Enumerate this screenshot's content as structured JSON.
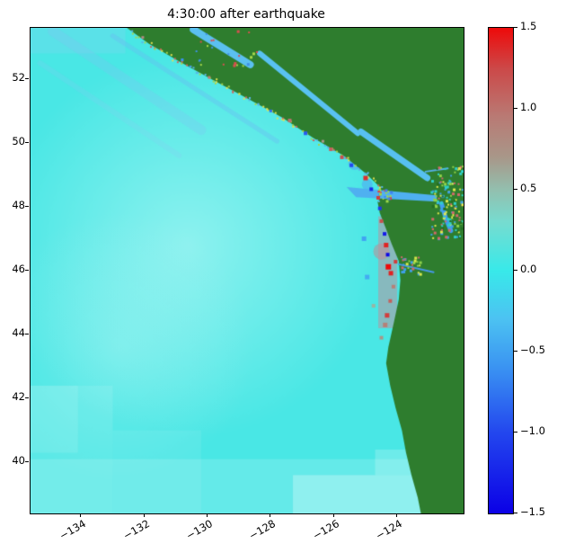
{
  "chart_data": {
    "type": "heatmap",
    "title": "4:30:00 after earthquake",
    "description": "Snapshot of simulated tsunami sea-surface elevation off the Cascadia (BC/Washington/Oregon) coast 4:30:00 after the earthquake. Ocean is near 0 (cyan), land is masked dark green, and strong positive/negative oscillations (up to ±1.5) hug the outer coast.",
    "grid": false,
    "x_axis": {
      "lim": [
        -135.6,
        -121.9
      ],
      "ticks": [
        -134,
        -132,
        -130,
        -128,
        -126,
        -124
      ],
      "tick_labels": [
        "−134",
        "−132",
        "−130",
        "−128",
        "−126",
        "−124"
      ],
      "tick_rotation_deg": -30
    },
    "y_axis": {
      "lim": [
        38.4,
        53.6
      ],
      "ticks": [
        40,
        42,
        44,
        46,
        48,
        50,
        52
      ],
      "tick_labels": [
        "40",
        "42",
        "44",
        "46",
        "48",
        "50",
        "52"
      ]
    },
    "colorbar": {
      "lim": [
        -1.5,
        1.5
      ],
      "ticks": [
        1.5,
        1.0,
        0.5,
        0.0,
        -0.5,
        -1.0,
        -1.5
      ],
      "tick_labels": [
        "1.5",
        "1.0",
        "0.5",
        "0.0",
        "−0.5",
        "−1.0",
        "−1.5"
      ],
      "stops": [
        {
          "v": 1.5,
          "c": "#ee0a0a"
        },
        {
          "v": 1.25,
          "c": "#cc4848"
        },
        {
          "v": 0.95,
          "c": "#b97a74"
        },
        {
          "v": 0.7,
          "c": "#a89789"
        },
        {
          "v": 0.5,
          "c": "#93bfae"
        },
        {
          "v": 0.3,
          "c": "#76dcd0"
        },
        {
          "v": 0.0,
          "c": "#38e9e9"
        },
        {
          "v": -0.3,
          "c": "#4cc2f2"
        },
        {
          "v": -0.6,
          "c": "#3a93f2"
        },
        {
          "v": -1.0,
          "c": "#2347ee"
        },
        {
          "v": -1.5,
          "c": "#0b00e6"
        }
      ]
    },
    "map": {
      "ocean": {
        "base": "#49e7e5",
        "overlays": [
          {
            "type": "radial",
            "lon": -130.6,
            "lat": 46.8,
            "r": 215,
            "rgba": [
              225,
              255,
              252,
              0.45
            ]
          },
          {
            "type": "radial",
            "lon": -132.8,
            "lat": 43.6,
            "r": 150,
            "rgba": [
              220,
              252,
              250,
              0.25
            ]
          },
          {
            "type": "rect",
            "x": [
              -135.6,
              -133.0
            ],
            "y": [
              38.4,
              42.4
            ],
            "rgba": [
              255,
              255,
              255,
              0.1
            ]
          },
          {
            "type": "rect",
            "x": [
              -135.6,
              -134.1
            ],
            "y": [
              40.3,
              42.4
            ],
            "rgba": [
              255,
              255,
              255,
              0.1
            ]
          },
          {
            "type": "rect",
            "x": [
              -133.0,
              -130.2
            ],
            "y": [
              38.4,
              41.0
            ],
            "rgba": [
              255,
              255,
              255,
              0.08
            ]
          },
          {
            "type": "rect",
            "x": [
              -135.6,
              -123.2
            ],
            "y": [
              38.4,
              40.1
            ],
            "rgba": [
              255,
              255,
              255,
              0.15
            ]
          },
          {
            "type": "rect",
            "x": [
              -127.3,
              -123.0
            ],
            "y": [
              38.4,
              39.6
            ],
            "rgba": [
              255,
              255,
              255,
              0.28
            ]
          },
          {
            "type": "rect",
            "x": [
              -124.7,
              -123.0
            ],
            "y": [
              39.6,
              40.4
            ],
            "rgba": [
              255,
              255,
              255,
              0.2
            ]
          },
          {
            "type": "rect",
            "x": [
              -135.6,
              -132.6
            ],
            "y": [
              52.8,
              53.6
            ],
            "rgba": [
              150,
              205,
              245,
              0.22
            ]
          },
          {
            "type": "stroke",
            "pts": [
              [
                -134.9,
                53.5
              ],
              [
                -130.2,
                50.4
              ]
            ],
            "w": 11,
            "rgba": [
              130,
              195,
              245,
              0.28
            ]
          },
          {
            "type": "stroke",
            "pts": [
              [
                -135.3,
                52.5
              ],
              [
                -130.9,
                49.6
              ]
            ],
            "w": 6,
            "rgba": [
              140,
              200,
              245,
              0.2
            ]
          },
          {
            "type": "stroke",
            "pts": [
              [
                -133.0,
                53.35
              ],
              [
                -127.8,
                50.05
              ]
            ],
            "w": 5,
            "rgba": [
              110,
              180,
              245,
              0.33
            ]
          },
          {
            "type": "blob",
            "lon": -126.6,
            "lat": 50.55,
            "r": 9,
            "rgba": [
              85,
              165,
              245,
              0.5
            ]
          },
          {
            "type": "blob",
            "lon": -125.9,
            "lat": 49.95,
            "r": 8,
            "rgba": [
              85,
              165,
              245,
              0.5
            ]
          },
          {
            "type": "blob",
            "lon": -125.35,
            "lat": 49.35,
            "r": 7,
            "rgba": [
              80,
              160,
              245,
              0.55
            ]
          },
          {
            "type": "blob",
            "lon": -124.95,
            "lat": 48.7,
            "r": 6,
            "rgba": [
              80,
              160,
              245,
              0.5
            ]
          },
          {
            "type": "blob",
            "lon": -129.1,
            "lat": 52.9,
            "r": 10,
            "rgba": [
              185,
              135,
              145,
              0.4
            ]
          },
          {
            "type": "blob",
            "lon": -127.7,
            "lat": 51.6,
            "r": 7,
            "rgba": [
              185,
              135,
              145,
              0.3
            ]
          },
          {
            "type": "blob",
            "lon": -124.5,
            "lat": 46.6,
            "r": 9,
            "rgba": [
              205,
              130,
              140,
              0.5
            ]
          },
          {
            "type": "rect",
            "x": [
              -124.6,
              -124.0
            ],
            "y": [
              44.2,
              47.7
            ],
            "rgba": [
              198,
              140,
              152,
              0.5
            ]
          }
        ]
      },
      "land": {
        "color": "#2e7d2e",
        "fringe_colors": [
          "#a6d44c",
          "#e0e052",
          "#5ab4e8",
          "#c96a5e"
        ],
        "fringe_seed": 7,
        "fringe_min_lat": 48.0,
        "coastline": [
          [
            -132.55,
            53.6
          ],
          [
            -131.85,
            53.1
          ],
          [
            -130.9,
            52.55
          ],
          [
            -129.8,
            51.95
          ],
          [
            -128.75,
            51.4
          ],
          [
            -127.65,
            50.8
          ],
          [
            -126.65,
            50.15
          ],
          [
            -125.7,
            49.6
          ],
          [
            -125.0,
            49.05
          ],
          [
            -124.55,
            48.62
          ],
          [
            -124.45,
            48.38
          ],
          [
            -124.62,
            48.15
          ],
          [
            -124.55,
            47.8
          ],
          [
            -124.35,
            47.3
          ],
          [
            -124.18,
            46.85
          ],
          [
            -123.95,
            46.3
          ],
          [
            -123.9,
            45.7
          ],
          [
            -123.95,
            45.1
          ],
          [
            -124.1,
            44.4
          ],
          [
            -124.28,
            43.6
          ],
          [
            -124.35,
            43.1
          ],
          [
            -124.22,
            42.4
          ],
          [
            -124.05,
            41.7
          ],
          [
            -123.85,
            41.0
          ],
          [
            -123.72,
            40.3
          ],
          [
            -123.55,
            39.6
          ],
          [
            -123.35,
            38.9
          ],
          [
            -123.25,
            38.4
          ],
          [
            -121.9,
            38.4
          ],
          [
            -121.9,
            53.6
          ]
        ]
      },
      "straits": [
        {
          "type": "stroke",
          "pts": [
            [
              -130.45,
              53.55
            ],
            [
              -128.65,
              52.45
            ]
          ],
          "w": 8,
          "color": "#5bc0f0"
        },
        {
          "type": "stroke",
          "pts": [
            [
              -128.35,
              52.8
            ],
            [
              -125.25,
              50.3
            ]
          ],
          "w": 6,
          "color": "#59c2f2"
        },
        {
          "type": "stroke",
          "pts": [
            [
              -125.15,
              50.35
            ],
            [
              -123.05,
              48.9
            ]
          ],
          "w": 7,
          "color": "#57c0f0"
        },
        {
          "type": "poly",
          "pts": [
            [
              -125.6,
              48.62
            ],
            [
              -122.75,
              48.36
            ],
            [
              -122.75,
              48.16
            ],
            [
              -125.3,
              48.3
            ]
          ],
          "color": "#4fb0f0"
        },
        {
          "type": "stroke",
          "pts": [
            [
              -122.6,
              48.1
            ],
            [
              -122.45,
              47.6
            ],
            [
              -122.3,
              47.25
            ]
          ],
          "w": 5,
          "color": "#3f9ff0"
        },
        {
          "type": "stroke",
          "pts": [
            [
              -123.95,
              46.2
            ],
            [
              -122.85,
              45.95
            ]
          ],
          "w": 2,
          "color": "#4698e8"
        },
        {
          "type": "stroke",
          "pts": [
            [
              -123.1,
              49.1
            ],
            [
              -122.4,
              49.2
            ]
          ],
          "w": 2,
          "color": "#57b0e8"
        }
      ],
      "noise_regions": [
        {
          "x": [
            -122.95,
            -121.95
          ],
          "y": [
            47.0,
            49.3
          ],
          "count": 150,
          "size": 2,
          "seed": 11,
          "colors": [
            "#8fd24a",
            "#e0e84e",
            "#3fa0e8",
            "#cf6a6a",
            "#2fd0c8",
            "#236e23"
          ]
        },
        {
          "x": [
            -123.9,
            -123.3
          ],
          "y": [
            45.9,
            46.45
          ],
          "count": 28,
          "size": 2,
          "seed": 5,
          "colors": [
            "#8fd24a",
            "#d8e84a",
            "#3fa0e8",
            "#cf6a6a"
          ]
        },
        {
          "x": [
            -124.7,
            -124.2
          ],
          "y": [
            48.2,
            48.6
          ],
          "count": 18,
          "size": 2,
          "seed": 9,
          "colors": [
            "#e04040",
            "#3f80f0",
            "#a0d84a"
          ]
        },
        {
          "x": [
            -130.6,
            -128.4
          ],
          "y": [
            52.3,
            53.55
          ],
          "count": 24,
          "size": 2,
          "seed": 3,
          "colors": [
            "#d85050",
            "#a8d84a",
            "#3f90e8"
          ]
        }
      ],
      "speckles": [
        {
          "lon": -132.05,
          "lat": 53.3,
          "v": 0.8,
          "s": 3
        },
        {
          "lon": -130.8,
          "lat": 52.6,
          "v": -0.6,
          "s": 3
        },
        {
          "lon": -129.95,
          "lat": 52.05,
          "v": 0.9,
          "s": 3
        },
        {
          "lon": -128.0,
          "lat": 51.0,
          "v": -0.8,
          "s": 3
        },
        {
          "lon": -127.4,
          "lat": 50.7,
          "v": 1.0,
          "s": 4
        },
        {
          "lon": -126.9,
          "lat": 50.3,
          "v": -0.9,
          "s": 4
        },
        {
          "lon": -126.35,
          "lat": 50.05,
          "v": 0.7,
          "s": 3
        },
        {
          "lon": -126.1,
          "lat": 49.8,
          "v": 1.1,
          "s": 4
        },
        {
          "lon": -125.75,
          "lat": 49.55,
          "v": 1.2,
          "s": 4
        },
        {
          "lon": -125.45,
          "lat": 49.3,
          "v": -1.0,
          "s": 4
        },
        {
          "lon": -125.0,
          "lat": 48.9,
          "v": 1.35,
          "s": 5
        },
        {
          "lon": -124.82,
          "lat": 48.55,
          "v": -1.2,
          "s": 4
        },
        {
          "lon": -124.6,
          "lat": 48.28,
          "v": 1.3,
          "s": 4
        },
        {
          "lon": -124.55,
          "lat": 47.95,
          "v": -1.1,
          "s": 4
        },
        {
          "lon": -124.5,
          "lat": 47.55,
          "v": 1.2,
          "s": 4
        },
        {
          "lon": -124.4,
          "lat": 47.15,
          "v": -1.3,
          "s": 4
        },
        {
          "lon": -124.35,
          "lat": 46.8,
          "v": 1.4,
          "s": 5
        },
        {
          "lon": -124.3,
          "lat": 46.5,
          "v": -1.45,
          "s": 4
        },
        {
          "lon": -124.28,
          "lat": 46.12,
          "v": 1.5,
          "s": 6
        },
        {
          "lon": -124.2,
          "lat": 45.92,
          "v": 1.4,
          "s": 5
        },
        {
          "lon": -124.05,
          "lat": 46.28,
          "v": 1.3,
          "s": 4
        },
        {
          "lon": -124.12,
          "lat": 45.5,
          "v": 0.9,
          "s": 4
        },
        {
          "lon": -124.22,
          "lat": 45.05,
          "v": 1.1,
          "s": 4
        },
        {
          "lon": -124.32,
          "lat": 44.6,
          "v": 1.3,
          "s": 5
        },
        {
          "lon": -124.38,
          "lat": 44.3,
          "v": 0.9,
          "s": 5
        },
        {
          "lon": -124.5,
          "lat": 43.9,
          "v": 0.7,
          "s": 4
        },
        {
          "lon": -125.05,
          "lat": 47.0,
          "v": -0.5,
          "s": 5
        },
        {
          "lon": -124.95,
          "lat": 45.8,
          "v": -0.45,
          "s": 5
        },
        {
          "lon": -124.75,
          "lat": 44.9,
          "v": 0.55,
          "s": 4
        }
      ]
    }
  }
}
